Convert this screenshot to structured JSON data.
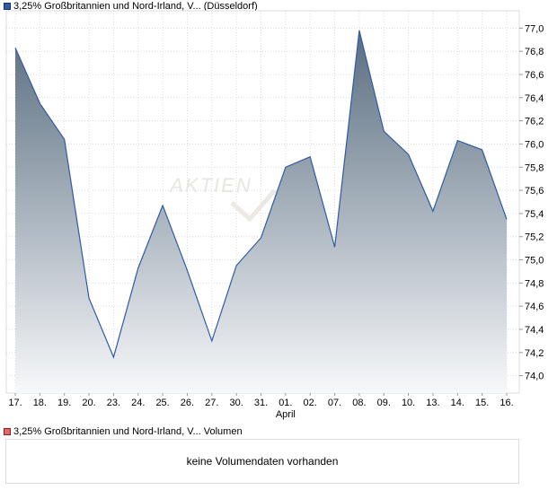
{
  "chart_legend": {
    "color": "#2f5aa8",
    "label": "3,25% Großbritannien und Nord-Irland, V...  (Düsseldorf)"
  },
  "volume_legend": {
    "color": "#e06a6a",
    "label": "3,25% Großbritannien und Nord-Irland, V...  Volumen"
  },
  "volume_panel": {
    "message": "keine Volumendaten vorhanden"
  },
  "chart_data": {
    "type": "area",
    "x": [
      "17.",
      "18.",
      "19.",
      "20.",
      "23.",
      "24.",
      "25.",
      "26.",
      "27.",
      "30.",
      "31.",
      "01.",
      "02.",
      "07.",
      "08.",
      "09.",
      "10.",
      "13.",
      "14.",
      "15.",
      "16."
    ],
    "month_label": "April",
    "month_label_at": "01.",
    "series": [
      {
        "values": [
          76.83,
          76.35,
          76.04,
          74.67,
          74.16,
          74.93,
          75.47,
          74.91,
          74.3,
          74.95,
          75.19,
          75.8,
          75.89,
          75.11,
          76.98,
          76.11,
          75.91,
          75.42,
          76.03,
          75.95,
          75.35
        ]
      }
    ],
    "yticks": [
      "74,0",
      "74,2",
      "74,4",
      "74,6",
      "74,8",
      "75,0",
      "75,2",
      "75,4",
      "75,6",
      "75,8",
      "76,0",
      "76,2",
      "76,4",
      "76,6",
      "76,8",
      "77,0"
    ],
    "ylim": [
      73.85,
      77.15
    ],
    "y_axis_position": "right",
    "grid": true,
    "line_color": "#2f5aa8",
    "fill_top_color": "#5a6e80",
    "fill_bottom_color": "#f7f8fa",
    "watermark": "AKTIEN"
  }
}
